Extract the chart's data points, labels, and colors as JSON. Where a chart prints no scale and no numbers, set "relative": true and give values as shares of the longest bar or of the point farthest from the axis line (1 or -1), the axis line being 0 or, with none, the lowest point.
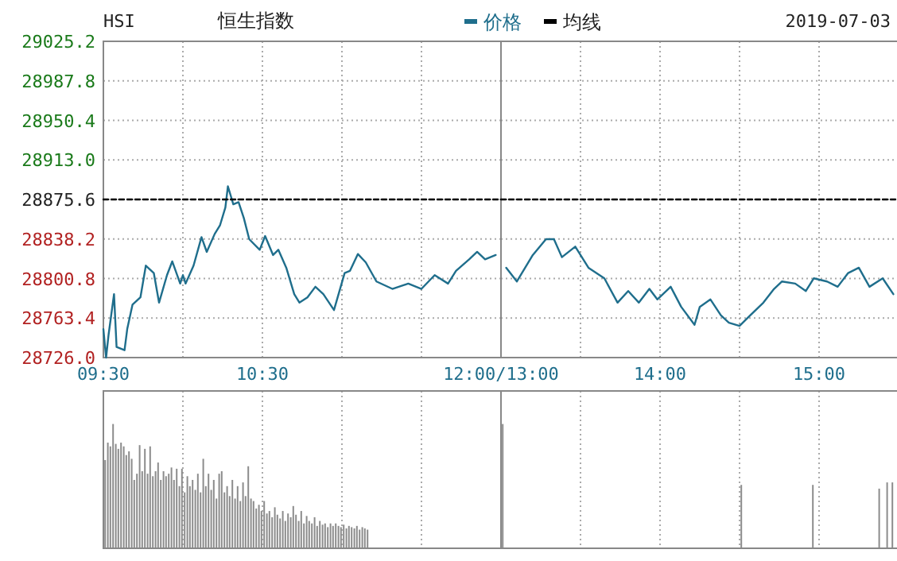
{
  "chart_data": [
    {
      "type": "line",
      "title": "恒生指数",
      "subtitle": "HSI",
      "annotations": [
        "2019-07-03"
      ],
      "legend": "top",
      "grid": true,
      "xlim": [
        9.5,
        12
      ],
      "xticks": [
        {
          "value": 9.5,
          "label": "09:30"
        },
        {
          "value": 10,
          "label": null
        },
        {
          "value": 10.5,
          "label": "10:30"
        },
        {
          "value": 11,
          "label": null
        },
        {
          "value": 11.5,
          "label": null
        },
        {
          "value": 12,
          "label": "12:00/13:00"
        }
      ],
      "ylim": [
        28726.0,
        29025.2
      ],
      "yticks": [
        {
          "value": 28726.0,
          "label": "28726.0"
        },
        {
          "value": 28763.4,
          "label": "28763.4"
        },
        {
          "value": 28800.8,
          "label": "28800.8"
        },
        {
          "value": 28838.2,
          "label": "28838.2"
        },
        {
          "value": 28875.6,
          "label": "28875.6"
        },
        {
          "value": 28913.0,
          "label": "28913.0"
        },
        {
          "value": 28950.4,
          "label": "28950.4"
        },
        {
          "value": 28987.8,
          "label": "28987.8"
        },
        {
          "value": 29025.2,
          "label": "29025.2"
        }
      ],
      "series": [
        {
          "name": "价格",
          "color": "#1f6e8c",
          "x": [
            9.5,
            9.517,
            9.533,
            9.567,
            9.583,
            9.633,
            9.65,
            9.683,
            9.733,
            9.767,
            9.817,
            9.85,
            9.9,
            9.933,
            9.983,
            10,
            10.017,
            10.067,
            10.117,
            10.15,
            10.2,
            10.233,
            10.267,
            10.283,
            10.317,
            10.35,
            10.383,
            10.417,
            10.483,
            10.517,
            10.567,
            10.6,
            10.65,
            10.7,
            10.733,
            10.783,
            10.833,
            10.883,
            10.95,
            11.017,
            11.05,
            11.1,
            11.15,
            11.217,
            11.317,
            11.417,
            11.5,
            11.583,
            11.667,
            11.717,
            11.8,
            11.85,
            11.9,
            11.967
          ],
          "values": [
            28753,
            28726,
            28748,
            28786,
            28736,
            28733,
            28753,
            28776,
            28783,
            28813,
            28806,
            28778,
            28804,
            28817,
            28796,
            28804,
            28796,
            28813,
            28840,
            28826,
            28843,
            28851,
            28868,
            28888,
            28871,
            28873,
            28858,
            28838,
            28828,
            28841,
            28823,
            28828,
            28811,
            28786,
            28778,
            28783,
            28793,
            28786,
            28771,
            28806,
            28808,
            28824,
            28816,
            28798,
            28791,
            28796,
            28791,
            28804,
            28796,
            28808,
            28819,
            28826,
            28819,
            28823
          ]
        },
        {
          "name": "均线",
          "color": "#000000",
          "line_style": "dashed",
          "x": [
            9.5,
            12
          ],
          "values": [
            28875.6,
            28875.6
          ]
        }
      ]
    },
    {
      "type": "line",
      "grid": true,
      "tick_labels": "x",
      "xlim": [
        13,
        15.5
      ],
      "xticks": [
        {
          "value": 13,
          "label": null
        },
        {
          "value": 13.5,
          "label": null
        },
        {
          "value": 14,
          "label": "14:00"
        },
        {
          "value": 14.5,
          "label": null
        },
        {
          "value": 15,
          "label": "15:00"
        },
        {
          "value": 15.5,
          "label": null
        }
      ],
      "ylim": [
        28726.0,
        29025.2
      ],
      "yticks": [
        28726.0,
        28763.4,
        28800.8,
        28838.2,
        28875.6,
        28913.0,
        28950.4,
        28987.8,
        29025.2
      ],
      "series": [
        {
          "color": "#1f6e8c",
          "x": [
            13.033,
            13.1,
            13.2,
            13.283,
            13.333,
            13.383,
            13.467,
            13.55,
            13.65,
            13.733,
            13.8,
            13.867,
            13.933,
            13.983,
            14.067,
            14.133,
            14.217,
            14.25,
            14.317,
            14.383,
            14.433,
            14.5,
            14.567,
            14.65,
            14.717,
            14.767,
            14.85,
            14.917,
            14.967,
            15.05,
            15.117,
            15.183,
            15.25,
            15.317,
            15.4,
            15.467
          ],
          "values": [
            28811,
            28798,
            28823,
            28838,
            28838,
            28821,
            28831,
            28811,
            28801,
            28778,
            28789,
            28778,
            28791,
            28781,
            28793,
            28774,
            28757,
            28774,
            28781,
            28766,
            28759,
            28756,
            28766,
            28778,
            28791,
            28798,
            28796,
            28789,
            28801,
            28798,
            28793,
            28806,
            28811,
            28793,
            28801,
            28786
          ]
        },
        {
          "color": "#000000",
          "line_style": "dashed",
          "x": [
            13,
            15.5
          ],
          "values": [
            28875.6,
            28875.6
          ]
        }
      ]
    },
    {
      "type": "bar",
      "relative": true,
      "color": "#8c8c8c",
      "grid": "x",
      "tick_labels": false,
      "xlim": [
        9.5,
        12
      ],
      "xticks": [
        9.5,
        10,
        10.5,
        11,
        11.5,
        12
      ],
      "x": [
        9.5,
        9.517,
        9.533,
        9.55,
        9.567,
        9.583,
        9.6,
        9.617,
        9.633,
        9.65,
        9.667,
        9.683,
        9.7,
        9.717,
        9.733,
        9.75,
        9.767,
        9.783,
        9.8,
        9.817,
        9.833,
        9.85,
        9.867,
        9.883,
        9.9,
        9.917,
        9.933,
        9.95,
        9.967,
        9.983,
        10,
        10.017,
        10.033,
        10.05,
        10.067,
        10.083,
        10.1,
        10.117,
        10.133,
        10.15,
        10.167,
        10.183,
        10.2,
        10.217,
        10.233,
        10.25,
        10.267,
        10.283,
        10.3,
        10.317,
        10.333,
        10.35,
        10.367,
        10.383,
        10.4,
        10.417,
        10.433,
        10.45,
        10.467,
        10.483,
        10.5,
        10.517,
        10.533,
        10.55,
        10.567,
        10.583,
        10.6,
        10.617,
        10.633,
        10.65,
        10.667,
        10.683,
        10.7,
        10.717,
        10.733,
        10.75,
        10.767,
        10.783,
        10.8,
        10.817,
        10.833,
        10.85,
        10.867,
        10.883,
        10.9,
        10.917,
        10.933,
        10.95,
        10.967,
        10.983,
        11,
        11.017,
        11.033,
        11.05,
        11.067,
        11.083,
        11.1,
        11.117,
        11.133,
        11.15
      ],
      "values": [
        0.71,
        0.85,
        0.82,
        1.0,
        0.84,
        0.8,
        0.85,
        0.82,
        0.75,
        0.78,
        0.72,
        0.55,
        0.6,
        0.83,
        0.62,
        0.8,
        0.6,
        0.82,
        0.58,
        0.62,
        0.69,
        0.55,
        0.62,
        0.58,
        0.6,
        0.65,
        0.55,
        0.64,
        0.5,
        0.64,
        0.45,
        0.58,
        0.5,
        0.55,
        0.47,
        0.6,
        0.45,
        0.72,
        0.5,
        0.6,
        0.47,
        0.55,
        0.4,
        0.6,
        0.62,
        0.45,
        0.5,
        0.42,
        0.55,
        0.4,
        0.5,
        0.38,
        0.53,
        0.42,
        0.66,
        0.4,
        0.38,
        0.32,
        0.35,
        0.3,
        0.38,
        0.28,
        0.3,
        0.25,
        0.33,
        0.27,
        0.24,
        0.3,
        0.22,
        0.28,
        0.25,
        0.34,
        0.27,
        0.22,
        0.3,
        0.2,
        0.26,
        0.22,
        0.2,
        0.25,
        0.18,
        0.22,
        0.19,
        0.2,
        0.17,
        0.2,
        0.18,
        0.2,
        0.18,
        0.17,
        0.19,
        0.16,
        0.18,
        0.17,
        0.16,
        0.18,
        0.15,
        0.17,
        0.16,
        0.15
      ]
    },
    {
      "type": "bar",
      "relative": true,
      "color": "#8c8c8c",
      "grid": "x",
      "tick_labels": false,
      "xlim": [
        13,
        15.5
      ],
      "xticks": [
        13,
        13.5,
        14,
        14.5,
        15,
        15.5
      ],
      "x": [
        13,
        14.5,
        14.95,
        15.367,
        15.417,
        15.45
      ],
      "values": [
        1,
        0.51,
        0.51,
        0.48,
        0.53,
        0.53
      ]
    }
  ]
}
